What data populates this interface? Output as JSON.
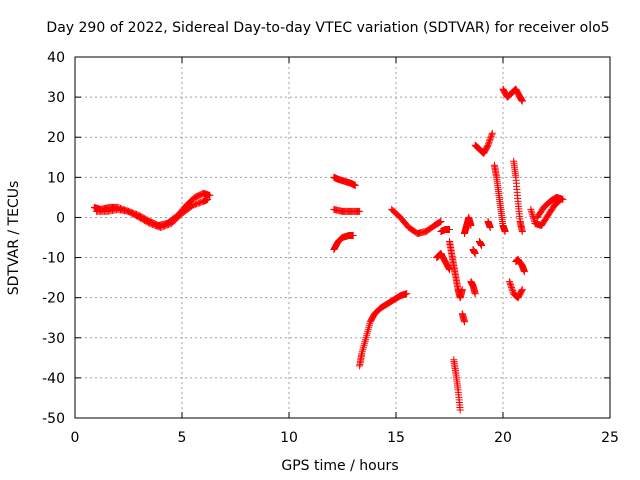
{
  "chart_data": {
    "type": "scatter",
    "title": "Day 290 of 2022, Sidereal Day-to-day VTEC variation (SDTVAR) for receiver olo5",
    "xlabel": "GPS time / hours",
    "ylabel": "SDTVAR / TECUs",
    "xlim": [
      0,
      25
    ],
    "ylim": [
      -50,
      40
    ],
    "xticks": [
      "0",
      "5",
      "10",
      "15",
      "20",
      "25"
    ],
    "yticks": [
      "-50",
      "-40",
      "-30",
      "-20",
      "-10",
      "0",
      "10",
      "20",
      "30",
      "40"
    ],
    "grid": true,
    "marker": "plus",
    "color": "#ff0000",
    "segments": [
      {
        "x": [
          0.9,
          1.2,
          1.6,
          2.0,
          2.5,
          3.0,
          3.5,
          3.9,
          4.3,
          4.8,
          5.2,
          5.6,
          6.0,
          6.3
        ],
        "y": [
          2.5,
          2.0,
          2.5,
          2.5,
          1.5,
          0.5,
          -1.0,
          -2.0,
          -1.5,
          0.5,
          3.0,
          5.0,
          6.0,
          5.5
        ]
      },
      {
        "x": [
          1.0,
          1.5,
          2.0,
          2.5,
          3.0,
          3.5,
          4.0,
          4.5,
          5.0,
          5.5,
          6.0,
          6.2
        ],
        "y": [
          1.5,
          1.5,
          2.0,
          1.5,
          0.0,
          -1.5,
          -2.5,
          -1.5,
          1.0,
          3.0,
          4.0,
          4.5
        ]
      },
      {
        "x": [
          12.1,
          12.3,
          12.6,
          12.9,
          13.1
        ],
        "y": [
          10.0,
          9.5,
          9.0,
          8.5,
          8.0
        ]
      },
      {
        "x": [
          12.1,
          12.5,
          12.9,
          13.3
        ],
        "y": [
          2.0,
          1.5,
          1.5,
          1.5
        ]
      },
      {
        "x": [
          12.1,
          12.3,
          12.5,
          12.8,
          13.0
        ],
        "y": [
          -8.0,
          -6.0,
          -5.0,
          -4.5,
          -4.5
        ]
      },
      {
        "x": [
          13.3,
          13.4,
          13.6,
          13.8,
          14.0,
          14.3,
          14.6,
          14.9,
          15.2,
          15.5
        ],
        "y": [
          -37.0,
          -34.0,
          -30.0,
          -26.0,
          -24.0,
          -22.5,
          -21.5,
          -20.5,
          -19.5,
          -19.0
        ]
      },
      {
        "x": [
          14.8,
          15.2,
          15.6,
          16.0,
          16.4,
          16.8,
          17.1
        ],
        "y": [
          2.0,
          0.0,
          -2.5,
          -4.0,
          -3.5,
          -2.0,
          -1.0
        ]
      },
      {
        "x": [
          17.1,
          17.3,
          17.5
        ],
        "y": [
          -3.5,
          -3.0,
          -3.0
        ]
      },
      {
        "x": [
          16.9,
          17.1,
          17.3,
          17.5
        ],
        "y": [
          -10.0,
          -9.0,
          -11.0,
          -13.0
        ]
      },
      {
        "x": [
          17.5,
          17.6,
          17.7,
          17.8,
          17.9,
          18.0,
          18.1
        ],
        "y": [
          -6.0,
          -9.0,
          -12.0,
          -15.0,
          -18.0,
          -20.0,
          -18.0
        ]
      },
      {
        "x": [
          17.7,
          17.8,
          17.9,
          18.0
        ],
        "y": [
          -35.5,
          -39.0,
          -43.0,
          -48.0
        ]
      },
      {
        "x": [
          18.1,
          18.2
        ],
        "y": [
          -24.0,
          -26.0
        ]
      },
      {
        "x": [
          18.2,
          18.3,
          18.4,
          18.5
        ],
        "y": [
          -4.0,
          -2.0,
          0.0,
          -2.0
        ]
      },
      {
        "x": [
          18.6,
          18.7
        ],
        "y": [
          -8.0,
          -9.0
        ]
      },
      {
        "x": [
          18.5,
          18.6,
          18.7
        ],
        "y": [
          -16.0,
          -17.0,
          -19.0
        ]
      },
      {
        "x": [
          18.7,
          18.9,
          19.1,
          19.3,
          19.5
        ],
        "y": [
          18.0,
          17.0,
          16.0,
          18.0,
          21.0
        ]
      },
      {
        "x": [
          18.9,
          19.0
        ],
        "y": [
          -6.0,
          -7.0
        ]
      },
      {
        "x": [
          19.3,
          19.4
        ],
        "y": [
          -1.0,
          -2.5
        ]
      },
      {
        "x": [
          19.6,
          19.7,
          19.8,
          19.9,
          20.0,
          20.1
        ],
        "y": [
          13.0,
          10.0,
          6.0,
          2.0,
          -2.0,
          -3.5
        ]
      },
      {
        "x": [
          20.0,
          20.2,
          20.4,
          20.6,
          20.8,
          20.9
        ],
        "y": [
          32.0,
          30.0,
          31.0,
          32.0,
          30.0,
          29.0
        ]
      },
      {
        "x": [
          20.3,
          20.5,
          20.7,
          20.9
        ],
        "y": [
          -16.0,
          -19.0,
          -20.0,
          -18.0
        ]
      },
      {
        "x": [
          20.6,
          20.7,
          20.9,
          21.0
        ],
        "y": [
          -11.0,
          -10.5,
          -12.0,
          -13.5
        ]
      },
      {
        "x": [
          20.5,
          20.6,
          20.7,
          20.8,
          20.9
        ],
        "y": [
          14.0,
          10.0,
          4.0,
          -1.0,
          -3.5
        ]
      },
      {
        "x": [
          21.3,
          21.5,
          21.8,
          22.1,
          22.4,
          22.7
        ],
        "y": [
          2.0,
          -1.5,
          -2.0,
          0.5,
          3.0,
          4.5
        ]
      },
      {
        "x": [
          21.6,
          21.9,
          22.2,
          22.5,
          22.8
        ],
        "y": [
          0.0,
          2.5,
          4.0,
          5.0,
          4.5
        ]
      }
    ]
  }
}
